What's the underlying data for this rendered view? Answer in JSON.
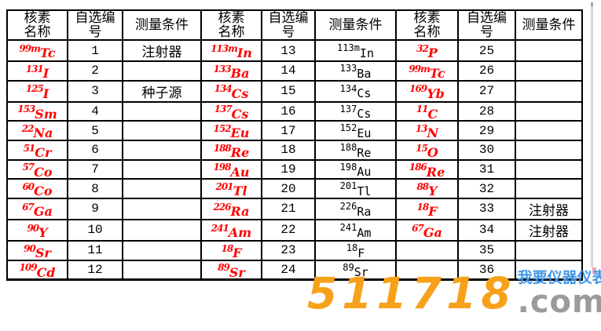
{
  "table": {
    "headers": {
      "nuclide": "核素\n名称",
      "number": "自选编\n号",
      "condition": "测量条件"
    },
    "groups": [
      {
        "rows": [
          {
            "mass": "99m",
            "sym": "Tc",
            "no": "1",
            "cond": "注射器"
          },
          {
            "mass": "131",
            "sym": "I",
            "no": "2",
            "cond": ""
          },
          {
            "mass": "125",
            "sym": "I",
            "no": "3",
            "cond": "种子源"
          },
          {
            "mass": "153",
            "sym": "Sm",
            "no": "4",
            "cond": ""
          },
          {
            "mass": "22",
            "sym": "Na",
            "no": "5",
            "cond": ""
          },
          {
            "mass": "51",
            "sym": "Cr",
            "no": "6",
            "cond": ""
          },
          {
            "mass": "57",
            "sym": "Co",
            "no": "7",
            "cond": ""
          },
          {
            "mass": "60",
            "sym": "Co",
            "no": "8",
            "cond": ""
          },
          {
            "mass": "67",
            "sym": "Ga",
            "no": "9",
            "cond": ""
          },
          {
            "mass": "90",
            "sym": "Y",
            "no": "10",
            "cond": ""
          },
          {
            "mass": "90",
            "sym": "Sr",
            "no": "11",
            "cond": ""
          },
          {
            "mass": "109",
            "sym": "Cd",
            "no": "12",
            "cond": ""
          }
        ]
      },
      {
        "rows": [
          {
            "mass": "113m",
            "sym": "In",
            "no": "13",
            "cond_mass": "113m",
            "cond_sym": "In"
          },
          {
            "mass": "133",
            "sym": "Ba",
            "no": "14",
            "cond_mass": "133",
            "cond_sym": "Ba"
          },
          {
            "mass": "134",
            "sym": "Cs",
            "no": "15",
            "cond_mass": "134",
            "cond_sym": "Cs"
          },
          {
            "mass": "137",
            "sym": "Cs",
            "no": "16",
            "cond_mass": "137",
            "cond_sym": "Cs"
          },
          {
            "mass": "152",
            "sym": "Eu",
            "no": "17",
            "cond_mass": "152",
            "cond_sym": "Eu"
          },
          {
            "mass": "188",
            "sym": "Re",
            "no": "18",
            "cond_mass": "188",
            "cond_sym": "Re"
          },
          {
            "mass": "198",
            "sym": "Au",
            "no": "19",
            "cond_mass": "198",
            "cond_sym": "Au"
          },
          {
            "mass": "201",
            "sym": "Tl",
            "no": "20",
            "cond_mass": "201",
            "cond_sym": "Tl"
          },
          {
            "mass": "226",
            "sym": "Ra",
            "no": "21",
            "cond_mass": "226",
            "cond_sym": "Ra"
          },
          {
            "mass": "241",
            "sym": "Am",
            "no": "22",
            "cond_mass": "241",
            "cond_sym": "Am"
          },
          {
            "mass": "18",
            "sym": "F",
            "no": "23",
            "cond_mass": "18",
            "cond_sym": "F"
          },
          {
            "mass": "89",
            "sym": "Sr",
            "no": "24",
            "cond_mass": "89",
            "cond_sym": "Sr"
          }
        ]
      },
      {
        "rows": [
          {
            "mass": "32",
            "sym": "P",
            "no": "25",
            "cond": ""
          },
          {
            "mass": "99m",
            "sym": "Tc",
            "no": "26",
            "cond": ""
          },
          {
            "mass": "169",
            "sym": "Yb",
            "no": "27",
            "cond": ""
          },
          {
            "mass": "11",
            "sym": "C",
            "no": "28",
            "cond": ""
          },
          {
            "mass": "13",
            "sym": "N",
            "no": "29",
            "cond": ""
          },
          {
            "mass": "15",
            "sym": "O",
            "no": "30",
            "cond": ""
          },
          {
            "mass": "186",
            "sym": "Re",
            "no": "31",
            "cond": ""
          },
          {
            "mass": "88",
            "sym": "Y",
            "no": "32",
            "cond": ""
          },
          {
            "mass": "18",
            "sym": "F",
            "no": "33",
            "cond": "注射器"
          },
          {
            "mass": "67",
            "sym": "Ga",
            "no": "34",
            "cond": "注射器"
          },
          {
            "mass": "",
            "sym": "",
            "no": "35",
            "cond": ""
          },
          {
            "mass": "",
            "sym": "",
            "no": "36",
            "cond": ""
          }
        ]
      }
    ]
  },
  "watermark": {
    "number": "511718",
    "tld": ".com",
    "slogan": "我要仪器仪表"
  },
  "colors": {
    "nuclide_red": "#ff0000",
    "table_border": "#000000",
    "logo_orange": "#f7a11b",
    "logo_gray": "#9b9b9b",
    "logo_blue": "#4197e8",
    "side_line_gray": "#d7d7d7"
  }
}
